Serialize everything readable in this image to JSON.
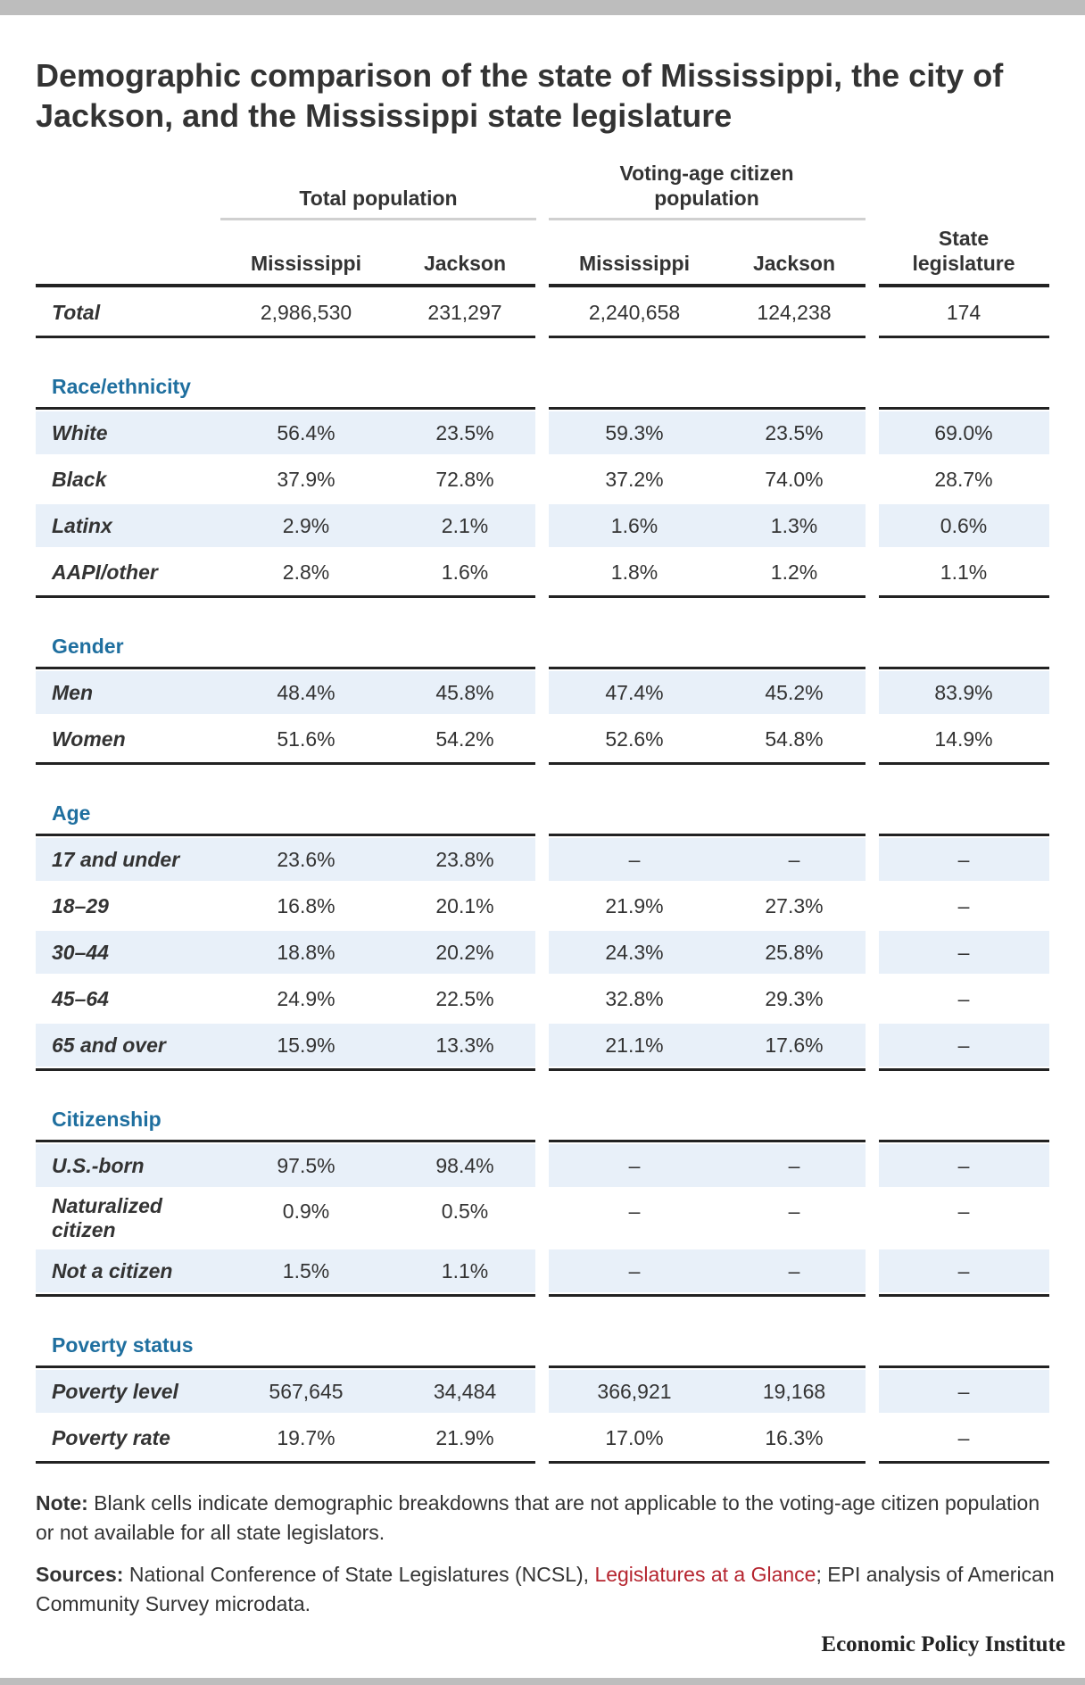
{
  "title": "Demographic comparison of the state of Mississippi, the city of Jackson, and the Mississippi state legislature",
  "group_headers": {
    "total_population": "Total population",
    "voting_age": "Voting-age citizen population"
  },
  "column_headers": [
    "Mississippi",
    "Jackson",
    "Mississippi",
    "Jackson",
    "State legislature"
  ],
  "total_row": {
    "label": "Total",
    "values": [
      "2,986,530",
      "231,297",
      "2,240,658",
      "124,238",
      "174"
    ]
  },
  "sections": [
    {
      "title": "Race/ethnicity",
      "rows": [
        {
          "label": "White",
          "values": [
            "56.4%",
            "23.5%",
            "59.3%",
            "23.5%",
            "69.0%"
          ]
        },
        {
          "label": "Black",
          "values": [
            "37.9%",
            "72.8%",
            "37.2%",
            "74.0%",
            "28.7%"
          ]
        },
        {
          "label": "Latinx",
          "values": [
            "2.9%",
            "2.1%",
            "1.6%",
            "1.3%",
            "0.6%"
          ]
        },
        {
          "label": "AAPI/other",
          "values": [
            "2.8%",
            "1.6%",
            "1.8%",
            "1.2%",
            "1.1%"
          ]
        }
      ]
    },
    {
      "title": "Gender",
      "rows": [
        {
          "label": "Men",
          "values": [
            "48.4%",
            "45.8%",
            "47.4%",
            "45.2%",
            "83.9%"
          ]
        },
        {
          "label": "Women",
          "values": [
            "51.6%",
            "54.2%",
            "52.6%",
            "54.8%",
            "14.9%"
          ]
        }
      ]
    },
    {
      "title": "Age",
      "rows": [
        {
          "label": "17 and under",
          "values": [
            "23.6%",
            "23.8%",
            "–",
            "–",
            "–"
          ]
        },
        {
          "label": "18–29",
          "values": [
            "16.8%",
            "20.1%",
            "21.9%",
            "27.3%",
            "–"
          ]
        },
        {
          "label": "30–44",
          "values": [
            "18.8%",
            "20.2%",
            "24.3%",
            "25.8%",
            "–"
          ]
        },
        {
          "label": "45–64",
          "values": [
            "24.9%",
            "22.5%",
            "32.8%",
            "29.3%",
            "–"
          ]
        },
        {
          "label": "65 and over",
          "values": [
            "15.9%",
            "13.3%",
            "21.1%",
            "17.6%",
            "–"
          ]
        }
      ]
    },
    {
      "title": "Citizenship",
      "rows": [
        {
          "label": "U.S.-born",
          "values": [
            "97.5%",
            "98.4%",
            "–",
            "–",
            "–"
          ]
        },
        {
          "label": "Naturalized citizen",
          "values": [
            "0.9%",
            "0.5%",
            "–",
            "–",
            "–"
          ]
        },
        {
          "label": "Not a citizen",
          "values": [
            "1.5%",
            "1.1%",
            "–",
            "–",
            "–"
          ]
        }
      ]
    },
    {
      "title": "Poverty status",
      "rows": [
        {
          "label": "Poverty level",
          "values": [
            "567,645",
            "34,484",
            "366,921",
            "19,168",
            "–"
          ]
        },
        {
          "label": "Poverty rate",
          "values": [
            "19.7%",
            "21.9%",
            "17.0%",
            "16.3%",
            "–"
          ]
        }
      ]
    }
  ],
  "note": {
    "label": "Note:",
    "text": "Blank cells indicate demographic breakdowns that are not applicable to the voting-age citizen population or not available for all state legislators."
  },
  "sources": {
    "label": "Sources:",
    "text_before": "National Conference of State Legislatures (NCSL),",
    "link_text": "Legislatures at a Glance",
    "text_after": "; EPI analysis of American Community Survey microdata."
  },
  "brand": "Economic Policy Institute",
  "colors": {
    "band": "#e8f0f9",
    "section": "#1f6f9f",
    "link": "#b5252f",
    "rule": "#222222"
  }
}
